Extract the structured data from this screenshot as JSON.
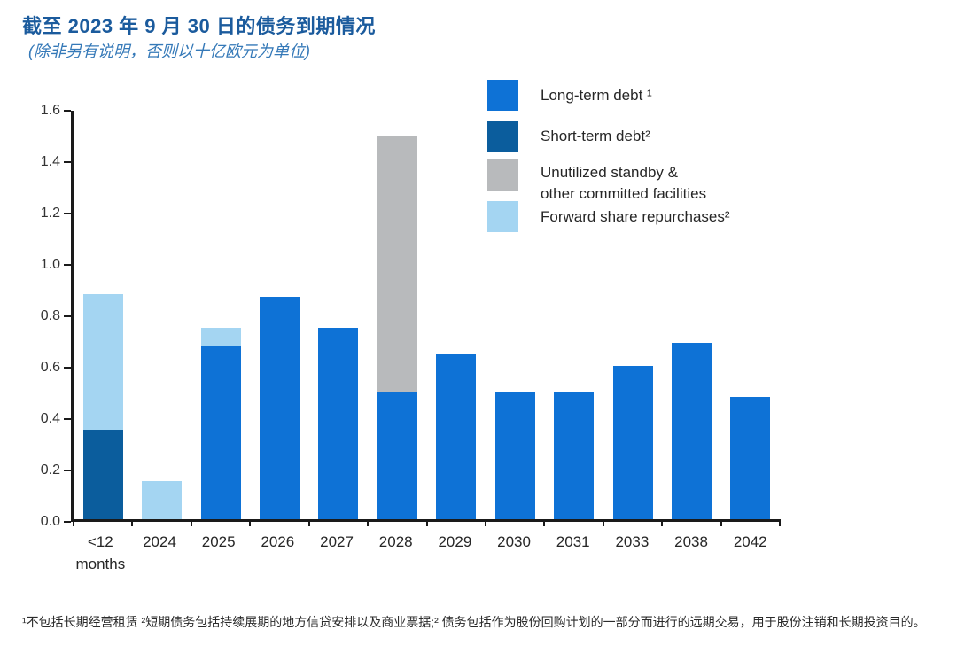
{
  "header": {
    "title": "截至 2023 年 9 月 30 日的债务到期情况",
    "subtitle": "(除非另有说明，否则以十亿欧元为单位)"
  },
  "legend": {
    "items": [
      {
        "name": "long-term-debt",
        "label": "Long-term debt ¹",
        "color": "#0e72d6"
      },
      {
        "name": "short-term-debt",
        "label": "Short-term debt²",
        "color": "#0b5d9d"
      },
      {
        "name": "unutilized-standby",
        "label": "Unutilized standby &\nother committed facilities",
        "color": "#b8babc"
      },
      {
        "name": "forward-share-repurchases",
        "label": "Forward share repurchases²",
        "color": "#a4d5f2"
      }
    ]
  },
  "chart_data": {
    "type": "bar",
    "stacked": true,
    "title": "截至 2023 年 9 月 30 日的债务到期情况",
    "subtitle": "(除非另有说明，否则以十亿欧元为单位)",
    "unit": "billions of euros",
    "categories": [
      "<12\nmonths",
      "2024",
      "2025",
      "2026",
      "2027",
      "2028",
      "2029",
      "2030",
      "2031",
      "2033",
      "2038",
      "2042"
    ],
    "series": [
      {
        "name": "Long-term debt",
        "color": "#0e72d6",
        "values": [
          0,
          0,
          0.68,
          0.87,
          0.75,
          0.5,
          0.65,
          0.5,
          0.5,
          0.6,
          0.69,
          0.48
        ]
      },
      {
        "name": "Short-term debt",
        "color": "#0b5d9d",
        "values": [
          0.35,
          0,
          0,
          0,
          0,
          0,
          0,
          0,
          0,
          0,
          0,
          0
        ]
      },
      {
        "name": "Unutilized standby & other committed facilities",
        "color": "#b8babc",
        "values": [
          0,
          0,
          0,
          0,
          0,
          1.0,
          0,
          0,
          0,
          0,
          0,
          0
        ]
      },
      {
        "name": "Forward share repurchases",
        "color": "#a4d5f2",
        "values": [
          0.53,
          0.15,
          0.07,
          0,
          0,
          0,
          0,
          0,
          0,
          0,
          0,
          0
        ]
      }
    ],
    "ylim": [
      0,
      1.6
    ],
    "yticks": [
      "0.0",
      "0.2",
      "0.4",
      "0.6",
      "0.8",
      "1.0",
      "1.2",
      "1.4",
      "1.6"
    ],
    "grid": false,
    "legend_position": "top-right"
  },
  "footnote": "¹不包括长期经营租赁 ²短期债务包括持续展期的地方信贷安排以及商业票据;² 债务包括作为股份回购计划的一部分而进行的远期交易，用于股份注销和长期投资目的。"
}
